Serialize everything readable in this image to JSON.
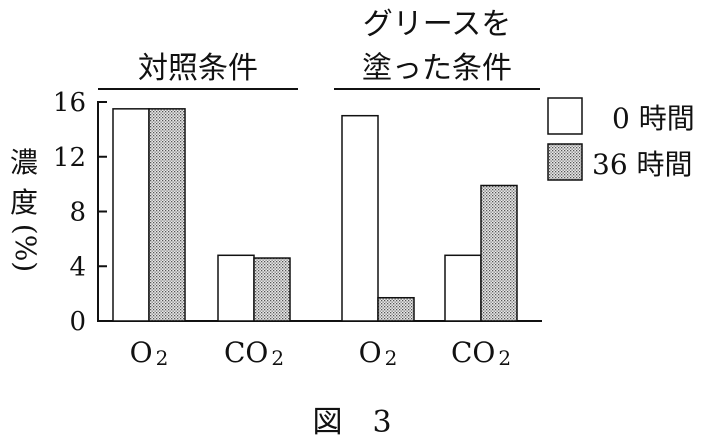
{
  "chart_data": {
    "type": "bar",
    "ylabel_chars": [
      "濃",
      "度",
      "(%)"
    ],
    "ylim": [
      0,
      16
    ],
    "yticks": [
      0,
      4,
      8,
      12,
      16
    ],
    "groups": [
      {
        "title_lines": [
          "対照条件"
        ]
      },
      {
        "title_lines": [
          "グリースを",
          "塗った条件"
        ]
      }
    ],
    "categories": [
      {
        "main": "O",
        "sub": "2",
        "group": 0
      },
      {
        "main": "CO",
        "sub": "2",
        "group": 0
      },
      {
        "main": "O",
        "sub": "2",
        "group": 1
      },
      {
        "main": "CO",
        "sub": "2",
        "group": 1
      }
    ],
    "series": [
      {
        "name": "0 時間",
        "values": [
          15.5,
          4.8,
          15.0,
          4.8
        ],
        "fill": "#ffffff"
      },
      {
        "name": "36 時間",
        "values": [
          15.5,
          4.6,
          1.7,
          9.9
        ],
        "fill": "dots"
      }
    ],
    "legend_position": "right",
    "caption": "図　3"
  }
}
